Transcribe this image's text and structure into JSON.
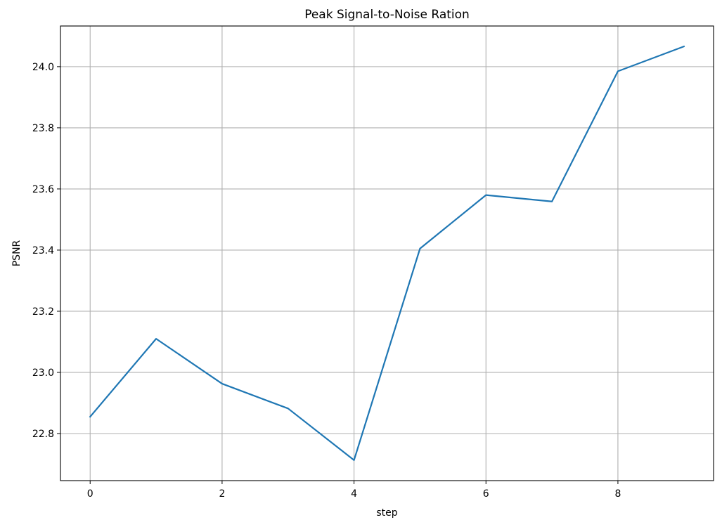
{
  "chart_data": {
    "type": "line",
    "title": "Peak Signal-to-Noise Ration",
    "xlabel": "step",
    "ylabel": "PSNR",
    "x": [
      0,
      1,
      2,
      3,
      4,
      5,
      6,
      7,
      8,
      9
    ],
    "series": [
      {
        "values": [
          22.855,
          23.11,
          22.963,
          22.882,
          22.713,
          23.405,
          23.58,
          23.559,
          23.985,
          24.066
        ],
        "color": "#1f77b4"
      }
    ],
    "xticks": [
      0,
      2,
      4,
      6,
      8
    ],
    "xtick_labels": [
      "0",
      "2",
      "4",
      "6",
      "8"
    ],
    "yticks": [
      22.8,
      23.0,
      23.2,
      23.4,
      23.6,
      23.8,
      24.0
    ],
    "ytick_labels": [
      "22.8",
      "23.0",
      "23.2",
      "23.4",
      "23.6",
      "23.8",
      "24.0"
    ],
    "xlim": [
      -0.45,
      9.45
    ],
    "ylim": [
      22.646,
      24.133
    ],
    "grid": true
  }
}
